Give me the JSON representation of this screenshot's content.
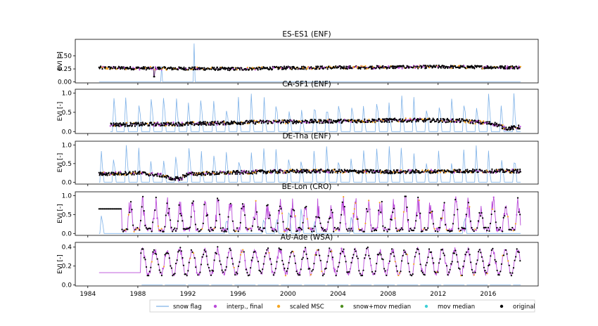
{
  "figure": {
    "xlabel": "",
    "x_ticks": [
      "1984",
      "1988",
      "1992",
      "1996",
      "2000",
      "2004",
      "2008",
      "2012",
      "2016"
    ]
  },
  "legend": {
    "items": [
      {
        "label": "snow flag",
        "color": "#7fb2e8",
        "marker": "line"
      },
      {
        "label": "interp., final",
        "color": "#b94ad8",
        "marker": "dot"
      },
      {
        "label": "scaled MSC",
        "color": "#f5a623",
        "marker": "dot"
      },
      {
        "label": "snow+mov median",
        "color": "#4f8f1f",
        "marker": "dot"
      },
      {
        "label": "mov median",
        "color": "#3ed0d6",
        "marker": "dot"
      },
      {
        "label": "original",
        "color": "#000000",
        "marker": "dot"
      }
    ]
  },
  "chart_data": [
    {
      "type": "line",
      "title": "ES-ES1 (ENF)",
      "ylabel": "EVI [-]",
      "xlim": [
        1983.0,
        2020.0
      ],
      "ylim": [
        -0.02,
        0.82
      ],
      "y_ticks": [
        "0.00",
        "0.25",
        "0.50"
      ],
      "y_tick_values": [
        0.0,
        0.25,
        0.5
      ],
      "start": 1984.9,
      "end": 2018.6,
      "series": [
        {
          "name": "original",
          "trend": [
            [
              1984.9,
              0.27
            ],
            [
              1990,
              0.26
            ],
            [
              1996,
              0.25
            ],
            [
              2000,
              0.27
            ],
            [
              2006,
              0.28
            ],
            [
              2012,
              0.29
            ],
            [
              2018.6,
              0.28
            ]
          ],
          "variability": "low"
        },
        {
          "name": "snow flag",
          "spikes": [
            [
              1989.9,
              0.3
            ],
            [
              1992.5,
              0.74
            ]
          ]
        }
      ]
    },
    {
      "type": "line",
      "title": "CA-SF1 (ENF)",
      "ylabel": "EVI [-]",
      "xlim": [
        1983.0,
        2020.0
      ],
      "ylim": [
        -0.05,
        1.1
      ],
      "y_ticks": [
        "0.0",
        "0.5",
        "1.0"
      ],
      "y_tick_values": [
        0.0,
        0.5,
        1.0
      ],
      "start": 1985.8,
      "end": 2018.6,
      "series": [
        {
          "name": "original",
          "trend": [
            [
              1985.8,
              0.18
            ],
            [
              1992,
              0.2
            ],
            [
              1998,
              0.25
            ],
            [
              2004,
              0.27
            ],
            [
              2010,
              0.3
            ],
            [
              2014,
              0.28
            ],
            [
              2016.5,
              0.2
            ],
            [
              2017.5,
              0.08
            ],
            [
              2018.6,
              0.12
            ]
          ],
          "variability": "medium"
        },
        {
          "name": "snow flag",
          "spikes": "winter"
        }
      ]
    },
    {
      "type": "line",
      "title": "DE-Tha (ENF)",
      "ylabel": "EVI [-]",
      "xlim": [
        1983.0,
        2020.0
      ],
      "ylim": [
        -0.05,
        1.1
      ],
      "y_ticks": [
        "0.0",
        "0.5",
        "1.0"
      ],
      "y_tick_values": [
        0.0,
        0.5,
        1.0
      ],
      "start": 1984.9,
      "end": 2018.6,
      "series": [
        {
          "name": "original",
          "trend": [
            [
              1984.9,
              0.22
            ],
            [
              1988,
              0.25
            ],
            [
              1990,
              0.18
            ],
            [
              1991,
              0.05
            ],
            [
              1992,
              0.22
            ],
            [
              1998,
              0.28
            ],
            [
              2002,
              0.3
            ],
            [
              2008,
              0.28
            ],
            [
              2014,
              0.3
            ],
            [
              2018.6,
              0.3
            ]
          ],
          "variability": "medium"
        },
        {
          "name": "snow flag",
          "spikes": "winter"
        }
      ]
    },
    {
      "type": "line",
      "title": "BE-Lon (CRO)",
      "ylabel": "EVI [-]",
      "xlim": [
        1983.0,
        2020.0
      ],
      "ylim": [
        -0.05,
        1.1
      ],
      "y_ticks": [
        "0.0",
        "0.5",
        "1.0"
      ],
      "y_tick_values": [
        0.0,
        0.5,
        1.0
      ],
      "start": 1984.9,
      "end": 2018.6,
      "series": [
        {
          "name": "interp., final",
          "range": [
            0.08,
            0.95
          ],
          "variability": "high"
        },
        {
          "name": "snow flag",
          "spikes": "sparse"
        }
      ]
    },
    {
      "type": "line",
      "title": "AU-Ade (WSA)",
      "ylabel": "EVI [-]",
      "xlim": [
        1983.0,
        2020.0
      ],
      "ylim": [
        -0.01,
        0.45
      ],
      "y_ticks": [
        "0.0",
        "0.2",
        "0.4"
      ],
      "y_tick_values": [
        0.0,
        0.2,
        0.4
      ],
      "start": 1984.9,
      "end": 2018.6,
      "flat_until": 1988.2,
      "flat_value": 0.13,
      "series": [
        {
          "name": "interp., final",
          "range": [
            0.1,
            0.42
          ],
          "seasonal": true
        }
      ]
    }
  ]
}
